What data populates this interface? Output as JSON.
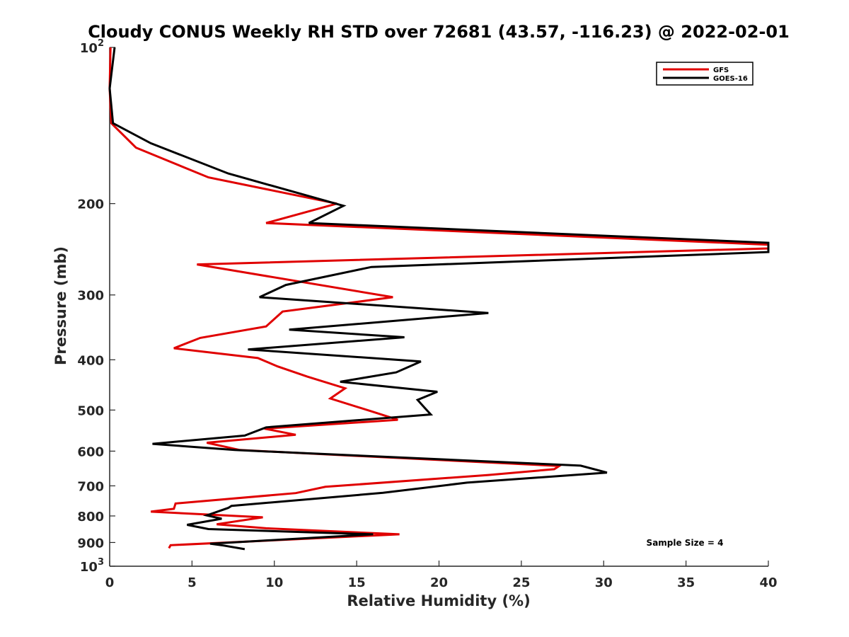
{
  "chart_data": {
    "type": "line",
    "title": "Cloudy CONUS Weekly RH STD over 72681 (43.57, -116.23) @ 2022-02-01",
    "xlabel": "Relative Humidity (%)",
    "ylabel": "Pressure (mb)",
    "xlim": [
      0,
      40
    ],
    "ylim": [
      100,
      1000
    ],
    "y_scale": "log",
    "y_reversed": true,
    "x_ticks": [
      0,
      5,
      10,
      15,
      20,
      25,
      30,
      35,
      40
    ],
    "y_ticks": [
      {
        "value": 100,
        "label": "10",
        "sup": "2"
      },
      {
        "value": 200,
        "label": "200",
        "sup": ""
      },
      {
        "value": 300,
        "label": "300",
        "sup": ""
      },
      {
        "value": 400,
        "label": "400",
        "sup": ""
      },
      {
        "value": 500,
        "label": "500",
        "sup": ""
      },
      {
        "value": 600,
        "label": "600",
        "sup": ""
      },
      {
        "value": 700,
        "label": "700",
        "sup": ""
      },
      {
        "value": 800,
        "label": "800",
        "sup": ""
      },
      {
        "value": 900,
        "label": "900",
        "sup": ""
      },
      {
        "value": 1000,
        "label": "10",
        "sup": "3"
      }
    ],
    "legend_position": "top-right",
    "annotation": "Sample Size = 4",
    "series": [
      {
        "name": "GFS",
        "color": "#e00000",
        "points": [
          [
            0.05,
            100
          ],
          [
            0.0,
            120
          ],
          [
            0.1,
            140
          ],
          [
            1.6,
            156
          ],
          [
            6.0,
            178
          ],
          [
            13.8,
            200
          ],
          [
            9.5,
            218
          ],
          [
            40.0,
            240
          ],
          [
            40.0,
            244
          ],
          [
            5.3,
            262
          ],
          [
            17.2,
            303
          ],
          [
            10.5,
            323
          ],
          [
            9.5,
            345
          ],
          [
            5.5,
            363
          ],
          [
            3.9,
            380
          ],
          [
            9.0,
            397
          ],
          [
            10.2,
            412
          ],
          [
            12.0,
            431
          ],
          [
            14.3,
            454
          ],
          [
            13.4,
            475
          ],
          [
            15.9,
            503
          ],
          [
            17.5,
            522
          ],
          [
            9.4,
            543
          ],
          [
            11.3,
            558
          ],
          [
            5.9,
            578
          ],
          [
            7.9,
            597
          ],
          [
            27.3,
            641
          ],
          [
            27.0,
            650
          ],
          [
            23.0,
            667
          ],
          [
            13.1,
            703
          ],
          [
            11.3,
            723
          ],
          [
            4.0,
            757
          ],
          [
            3.9,
            775
          ],
          [
            2.5,
            785
          ],
          [
            9.3,
            805
          ],
          [
            6.5,
            830
          ],
          [
            9.5,
            845
          ],
          [
            17.6,
            868
          ],
          [
            3.7,
            911
          ],
          [
            3.6,
            923
          ]
        ]
      },
      {
        "name": "GOES-16",
        "color": "#000000",
        "points": [
          [
            0.3,
            100
          ],
          [
            0.0,
            120
          ],
          [
            0.2,
            140
          ],
          [
            2.5,
            153
          ],
          [
            7.2,
            175
          ],
          [
            14.2,
            202
          ],
          [
            12.1,
            218
          ],
          [
            40.0,
            238
          ],
          [
            40.0,
            248
          ],
          [
            15.9,
            265
          ],
          [
            10.7,
            287
          ],
          [
            9.1,
            303
          ],
          [
            23.0,
            325
          ],
          [
            10.9,
            350
          ],
          [
            17.9,
            362
          ],
          [
            8.4,
            382
          ],
          [
            18.9,
            403
          ],
          [
            17.4,
            423
          ],
          [
            14.0,
            441
          ],
          [
            19.9,
            461
          ],
          [
            18.7,
            478
          ],
          [
            19.1,
            494
          ],
          [
            19.5,
            510
          ],
          [
            9.5,
            540
          ],
          [
            8.2,
            560
          ],
          [
            2.6,
            581
          ],
          [
            7.6,
            597
          ],
          [
            28.6,
            640
          ],
          [
            30.2,
            660
          ],
          [
            21.7,
            690
          ],
          [
            16.6,
            722
          ],
          [
            7.4,
            765
          ],
          [
            7.2,
            772
          ],
          [
            5.9,
            798
          ],
          [
            6.8,
            810
          ],
          [
            4.7,
            832
          ],
          [
            6.0,
            848
          ],
          [
            16.0,
            868
          ],
          [
            6.1,
            905
          ],
          [
            6.9,
            912
          ],
          [
            8.2,
            927
          ]
        ]
      }
    ]
  }
}
